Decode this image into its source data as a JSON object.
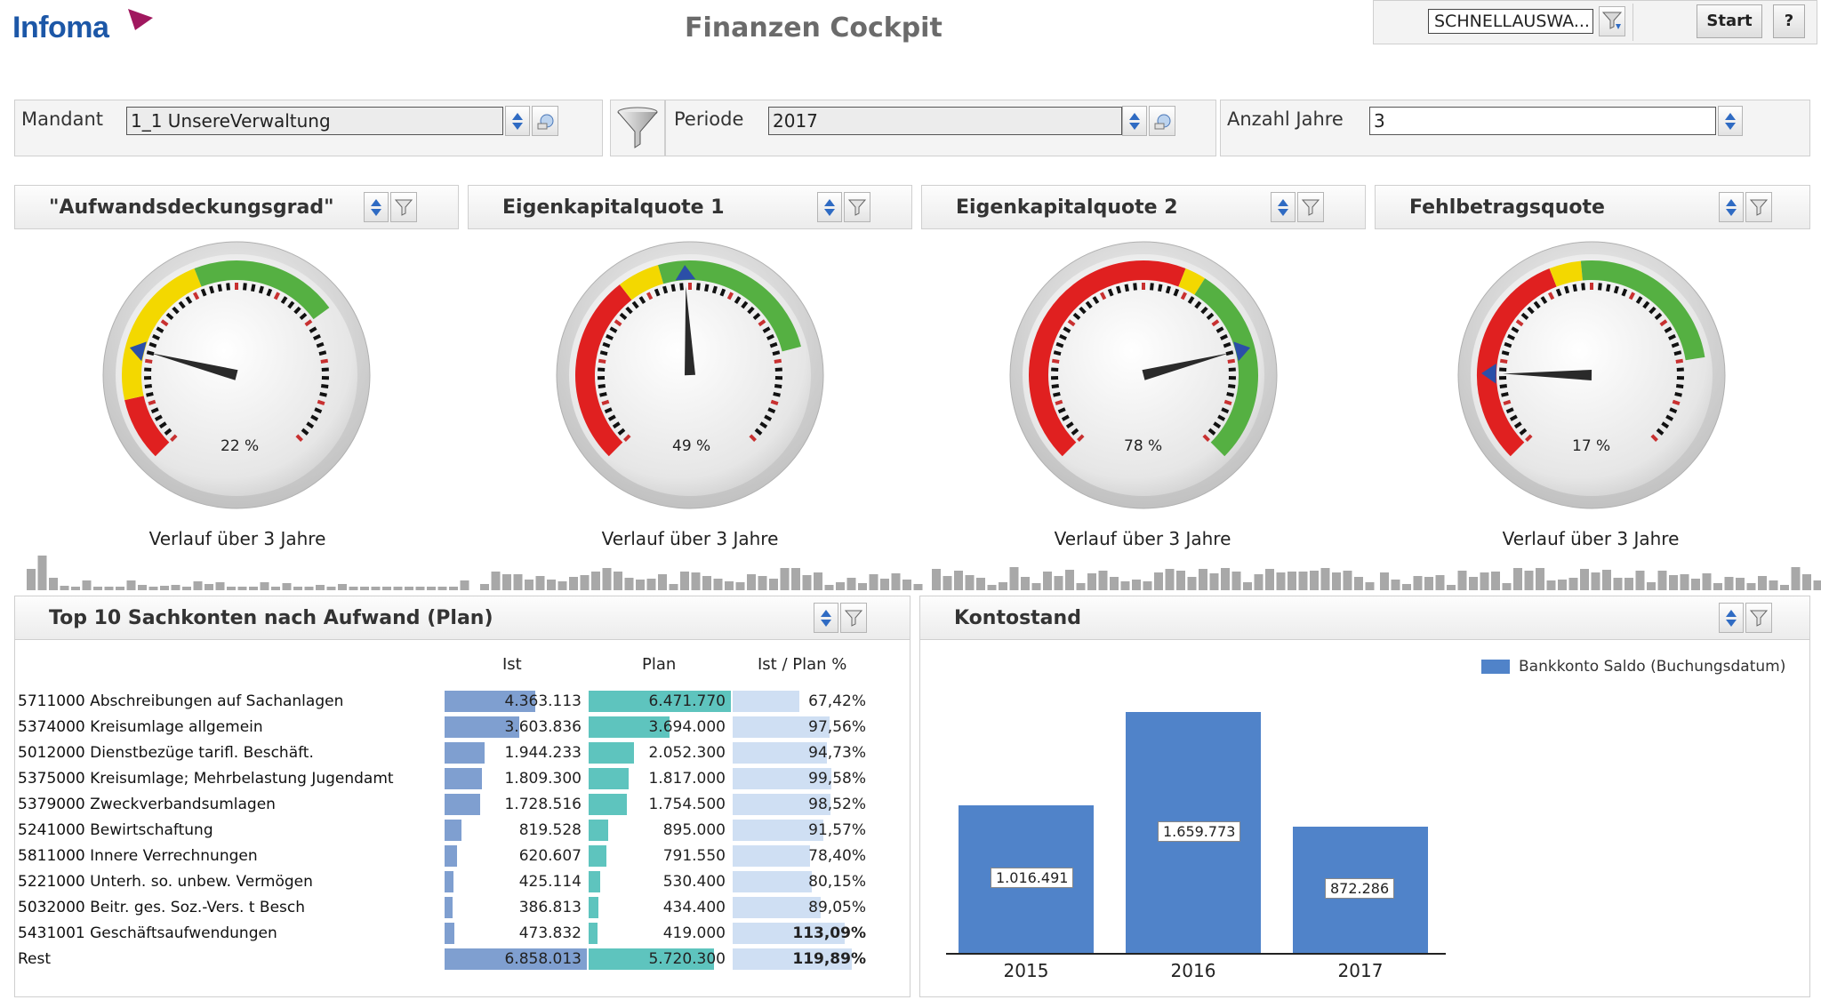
{
  "app": {
    "logo": "Infoma",
    "title": "Finanzen Cockpit"
  },
  "toolbar": {
    "quick_select": "SCHNELLAUSWA...",
    "start_label": "Start",
    "help_label": "?"
  },
  "filters": {
    "mandant": {
      "label": "Mandant",
      "value": "1_1 UnsereVerwaltung"
    },
    "periode": {
      "label": "Periode",
      "value": "2017"
    },
    "jahre": {
      "label": "Anzahl Jahre",
      "value": "3"
    }
  },
  "gauges": [
    {
      "title": "\"Aufwandsdeckungsgrad\"",
      "value": 22,
      "value_text": "22 %",
      "subtitle": "Verlauf über 3 Jahre"
    },
    {
      "title": "Eigenkapitalquote 1",
      "value": 49,
      "value_text": "49 %",
      "subtitle": "Verlauf über 3 Jahre"
    },
    {
      "title": "Eigenkapitalquote 2",
      "value": 78,
      "value_text": "78 %",
      "subtitle": "Verlauf über 3 Jahre"
    },
    {
      "title": "Fehlbetragsquote",
      "value": 17,
      "value_text": "17 %",
      "subtitle": "Verlauf über 3 Jahre"
    }
  ],
  "colors": {
    "ist": "#7f9fd0",
    "plan": "#5ec4be",
    "ratio": "#cfdff3",
    "bank": "#5083c9",
    "red": "#e02020",
    "yellow": "#f3d800",
    "green": "#55b042",
    "blue": "#2b4fa8"
  },
  "top10": {
    "title": "Top 10 Sachkonten nach Aufwand (Plan)",
    "col_ist": "Ist",
    "col_plan": "Plan",
    "col_ratio": "Ist / Plan %",
    "rows": [
      {
        "label": "5711000 Abschreibungen auf Sachanlagen",
        "ist": "4.363.113",
        "plan": "6.471.770",
        "ratio": "67,42%",
        "ist_v": 4363113,
        "plan_v": 6471770,
        "ratio_v": 67.42,
        "bold": false
      },
      {
        "label": "5374000 Kreisumlage allgemein",
        "ist": "3.603.836",
        "plan": "3.694.000",
        "ratio": "97,56%",
        "ist_v": 3603836,
        "plan_v": 3694000,
        "ratio_v": 97.56,
        "bold": false
      },
      {
        "label": "5012000 Dienstbezüge tarifl. Beschäft.",
        "ist": "1.944.233",
        "plan": "2.052.300",
        "ratio": "94,73%",
        "ist_v": 1944233,
        "plan_v": 2052300,
        "ratio_v": 94.73,
        "bold": false
      },
      {
        "label": "5375000 Kreisumlage; Mehrbelastung Jugendamt",
        "ist": "1.809.300",
        "plan": "1.817.000",
        "ratio": "99,58%",
        "ist_v": 1809300,
        "plan_v": 1817000,
        "ratio_v": 99.58,
        "bold": false
      },
      {
        "label": "5379000 Zweckverbandsumlagen",
        "ist": "1.728.516",
        "plan": "1.754.500",
        "ratio": "98,52%",
        "ist_v": 1728516,
        "plan_v": 1754500,
        "ratio_v": 98.52,
        "bold": false
      },
      {
        "label": "5241000 Bewirtschaftung",
        "ist": "819.528",
        "plan": "895.000",
        "ratio": "91,57%",
        "ist_v": 819528,
        "plan_v": 895000,
        "ratio_v": 91.57,
        "bold": false
      },
      {
        "label": "5811000 Innere Verrechnungen",
        "ist": "620.607",
        "plan": "791.550",
        "ratio": "78,40%",
        "ist_v": 620607,
        "plan_v": 791550,
        "ratio_v": 78.4,
        "bold": false
      },
      {
        "label": "5221000 Unterh. so. unbew. Vermögen",
        "ist": "425.114",
        "plan": "530.400",
        "ratio": "80,15%",
        "ist_v": 425114,
        "plan_v": 530400,
        "ratio_v": 80.15,
        "bold": false
      },
      {
        "label": "5032000 Beitr. ges. Soz.-Vers. t Besch",
        "ist": "386.813",
        "plan": "434.400",
        "ratio": "89,05%",
        "ist_v": 386813,
        "plan_v": 434400,
        "ratio_v": 89.05,
        "bold": false
      },
      {
        "label": "5431001 Geschäftsaufwendungen",
        "ist": "473.832",
        "plan": "419.000",
        "ratio": "113,09%",
        "ist_v": 473832,
        "plan_v": 419000,
        "ratio_v": 113.09,
        "bold": true
      },
      {
        "label": "Rest",
        "ist": "6.858.013",
        "plan": "5.720.300",
        "ratio": "119,89%",
        "ist_v": 6858013,
        "plan_v": 5720300,
        "ratio_v": 119.89,
        "bold": true
      }
    ]
  },
  "kontostand": {
    "title": "Kontostand",
    "chart_data": {
      "type": "bar",
      "categories": [
        "2015",
        "2016",
        "2017"
      ],
      "series": [
        {
          "name": "Bankkonto Saldo (Buchungsdatum)",
          "values": [
            1016491,
            1659773,
            872286
          ],
          "labels": [
            "1.016.491",
            "1.659.773",
            "872.286"
          ]
        }
      ],
      "ylim": [
        0,
        1900000
      ],
      "legend": "top-right",
      "grid": false
    }
  }
}
